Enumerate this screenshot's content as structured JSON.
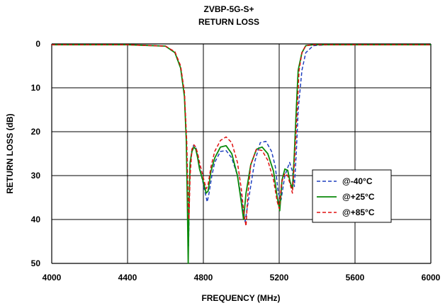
{
  "chart_data": {
    "type": "line",
    "title": "ZVBP-5G-S+",
    "subtitle": "RETURN LOSS",
    "xlabel": "FREQUENCY (MHz)",
    "ylabel": "RETURN LOSS (dB)",
    "xlim": [
      4000,
      6000
    ],
    "ylim": [
      0,
      50
    ],
    "y_inverted": true,
    "grid": true,
    "legend_position": "right",
    "xticks": [
      "4000",
      "4400",
      "4800",
      "5200",
      "5600",
      "6000"
    ],
    "yticks": [
      "0",
      "10",
      "20",
      "30",
      "40",
      "50"
    ],
    "series": [
      {
        "name": "@-40°C",
        "color": "#1f3fbf",
        "dash": "dashed",
        "x": [
          4000,
          4400,
          4600,
          4650,
          4680,
          4700,
          4710,
          4718,
          4722,
          4726,
          4730,
          4740,
          4750,
          4760,
          4770,
          4780,
          4800,
          4820,
          4830,
          4845,
          4860,
          4890,
          4920,
          4950,
          4980,
          5000,
          5020,
          5040,
          5070,
          5100,
          5130,
          5160,
          5180,
          5195,
          5210,
          5230,
          5255,
          5270,
          5280,
          5290,
          5300,
          5320,
          5340,
          5380,
          5450,
          5520,
          5600,
          5700,
          6000
        ],
        "y": [
          0.2,
          0.2,
          0.5,
          2,
          5.5,
          12,
          22,
          35,
          46,
          35,
          27,
          24,
          23,
          23.5,
          25.5,
          28,
          32,
          36,
          34,
          30,
          27,
          24.5,
          24.3,
          26,
          30,
          35,
          40.5,
          35,
          27,
          22.5,
          22.2,
          24.5,
          28,
          34,
          35.5,
          30,
          27,
          29,
          32.5,
          25,
          15,
          6,
          2,
          0.4,
          0.2,
          0.2,
          0.2,
          0.2,
          0.2
        ]
      },
      {
        "name": "@+25°C",
        "color": "#0a8a0a",
        "dash": "solid",
        "x": [
          4000,
          4400,
          4600,
          4650,
          4680,
          4700,
          4710,
          4715,
          4720,
          4725,
          4730,
          4740,
          4750,
          4760,
          4770,
          4780,
          4800,
          4815,
          4825,
          4840,
          4860,
          4890,
          4920,
          4950,
          4980,
          5000,
          5012,
          5025,
          5050,
          5080,
          5110,
          5140,
          5170,
          5190,
          5203,
          5215,
          5230,
          5245,
          5258,
          5270,
          5280,
          5290,
          5300,
          5320,
          5340,
          5380,
          5450,
          5520,
          5600,
          5700,
          6000
        ],
        "y": [
          0.2,
          0.2,
          0.5,
          2,
          5.5,
          12,
          22,
          35,
          50,
          35,
          27,
          24.5,
          23.5,
          24,
          26,
          28.5,
          31.5,
          34,
          33.5,
          29,
          26,
          23.5,
          23.2,
          25,
          30,
          36,
          40,
          34,
          27.5,
          24,
          23.5,
          25,
          29,
          35,
          38,
          31,
          28.5,
          28.8,
          31.5,
          33,
          25,
          15,
          6,
          2,
          0.4,
          0.2,
          0.2,
          0.2,
          0.2,
          0.2,
          0.2
        ]
      },
      {
        "name": "@+85°C",
        "color": "#e01010",
        "dash": "dashed",
        "x": [
          4000,
          4400,
          4600,
          4650,
          4680,
          4700,
          4712,
          4720,
          4724,
          4730,
          4740,
          4750,
          4760,
          4770,
          4780,
          4800,
          4815,
          4825,
          4840,
          4860,
          4890,
          4920,
          4950,
          4980,
          5000,
          5015,
          5025,
          5035,
          5050,
          5080,
          5110,
          5140,
          5170,
          5190,
          5200,
          5213,
          5230,
          5245,
          5258,
          5270,
          5282,
          5295,
          5305,
          5320,
          5340,
          5380,
          5450,
          5520,
          5600,
          5700,
          6000
        ],
        "y": [
          0.2,
          0.2,
          0.5,
          1.8,
          5,
          11,
          22,
          36,
          40,
          30,
          24,
          23,
          23.5,
          25,
          27,
          30.5,
          33,
          32,
          28,
          24.5,
          22,
          21.2,
          22.5,
          27,
          33,
          39,
          41.5,
          34,
          27.5,
          24,
          24.3,
          26.5,
          31,
          36,
          37.5,
          31.5,
          29.5,
          30,
          32,
          34,
          26,
          15,
          6,
          2,
          0.4,
          0.2,
          0.2,
          0.2,
          0.2,
          0.2,
          0.2
        ]
      }
    ]
  }
}
